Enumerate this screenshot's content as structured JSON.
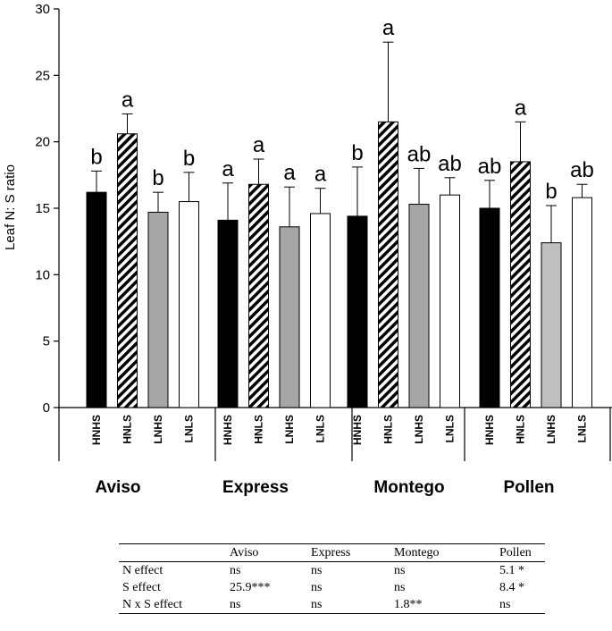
{
  "chart_data": {
    "type": "bar",
    "ylabel": "Leaf N: S ratio",
    "ylim": [
      0,
      30
    ],
    "yticks": [
      0,
      5,
      10,
      15,
      20,
      25,
      30
    ],
    "groups": [
      "Aviso",
      "Express",
      "Montego",
      "Pollen"
    ],
    "categories": [
      "HNHS",
      "HNLS",
      "LNHS",
      "LNLS"
    ],
    "series": [
      {
        "name": "HNHS",
        "fill": "black",
        "values": [
          16.2,
          14.1,
          14.4,
          15.0
        ],
        "errors": [
          1.6,
          2.8,
          3.7,
          2.1
        ],
        "letters": [
          "b",
          "a",
          "b",
          "ab"
        ]
      },
      {
        "name": "HNLS",
        "fill": "hatched",
        "values": [
          20.6,
          16.8,
          21.5,
          18.5
        ],
        "errors": [
          1.5,
          1.9,
          6.0,
          3.0
        ],
        "letters": [
          "a",
          "a",
          "a",
          "a"
        ]
      },
      {
        "name": "LNHS",
        "fill": "grey",
        "values": [
          14.7,
          13.6,
          15.3,
          12.4
        ],
        "errors": [
          1.5,
          3.0,
          2.7,
          2.8
        ],
        "letters": [
          "b",
          "a",
          "ab",
          "b"
        ]
      },
      {
        "name": "LNLS",
        "fill": "white",
        "values": [
          15.5,
          14.6,
          16.0,
          15.8
        ],
        "errors": [
          2.2,
          1.9,
          1.3,
          1.0
        ],
        "letters": [
          "b",
          "a",
          "ab",
          "ab"
        ]
      }
    ],
    "colors": {
      "black": "#000000",
      "grey": "#a6a6a6",
      "grey_pollen": "#bfbfbf",
      "white": "#ffffff"
    },
    "grid": false
  },
  "stats_table": {
    "headers": [
      "",
      "Aviso",
      "Express",
      "Montego",
      "Pollen"
    ],
    "rows": [
      [
        "N effect",
        "ns",
        "ns",
        "ns",
        "5.1 *"
      ],
      [
        "S effect",
        "25.9***",
        "ns",
        "ns",
        "8.4 *"
      ],
      [
        "N x S effect",
        "ns",
        "ns",
        "1.8**",
        "ns"
      ]
    ]
  }
}
